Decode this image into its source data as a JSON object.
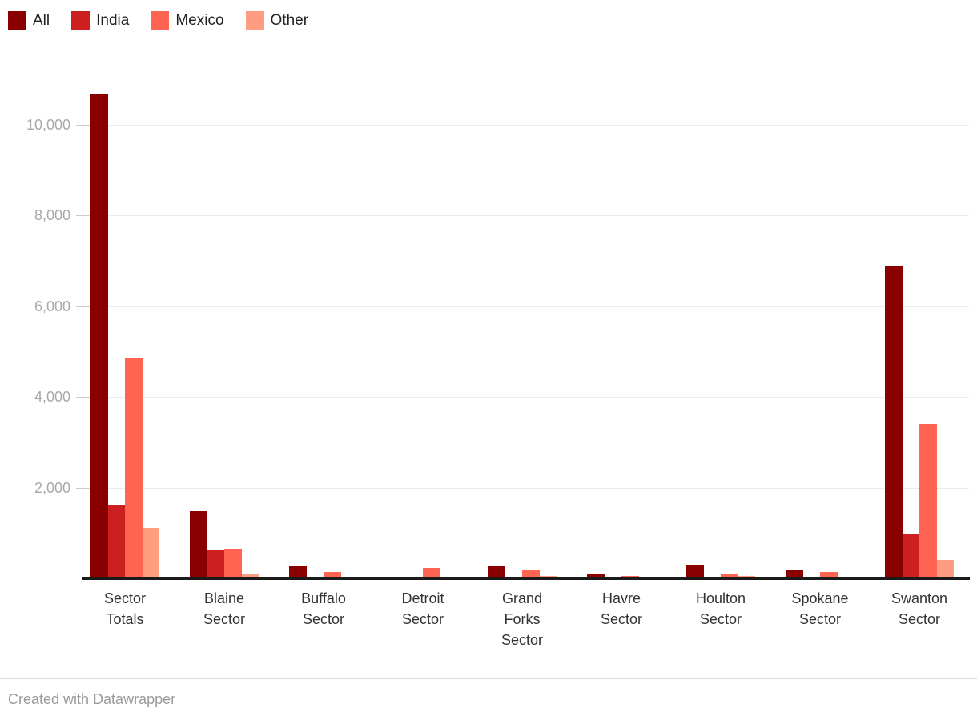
{
  "chart_data": {
    "type": "bar",
    "grouped": true,
    "title": "",
    "xlabel": "",
    "ylabel": "",
    "categories": [
      "Sector Totals",
      "Blaine Sector",
      "Buffalo Sector",
      "Detroit Sector",
      "Grand Forks Sector",
      "Havre Sector",
      "Houlton Sector",
      "Spokane Sector",
      "Swanton Sector"
    ],
    "series": [
      {
        "name": "All",
        "color": "#8a0000",
        "values": [
          10670,
          1480,
          280,
          0,
          280,
          100,
          300,
          185,
          6880
        ]
      },
      {
        "name": "India",
        "color": "#cc2020",
        "values": [
          1620,
          620,
          0,
          0,
          0,
          0,
          0,
          0,
          990
        ]
      },
      {
        "name": "Mexico",
        "color": "#ff6351",
        "values": [
          4850,
          650,
          140,
          230,
          190,
          60,
          80,
          140,
          3400
        ]
      },
      {
        "name": "Other",
        "color": "#fe9d80",
        "values": [
          1110,
          90,
          0,
          0,
          50,
          0,
          45,
          0,
          410
        ]
      }
    ],
    "ylim": [
      0,
      10800
    ],
    "yticks": [
      2000,
      4000,
      6000,
      8000,
      10000
    ],
    "ytick_labels": [
      "2,000",
      "4,000",
      "6,000",
      "8,000",
      "10,000"
    ],
    "grid": "horizontal",
    "legend_position": "top-left"
  },
  "footer": {
    "attribution": "Created with Datawrapper"
  },
  "colors": {
    "background": "#ffffff",
    "grid": "#ebebeb",
    "baseline": "#1a1a1a",
    "axis_tick_label": "#a8a8a8",
    "category_label": "#333333",
    "footer_text": "#9b9b9b"
  }
}
